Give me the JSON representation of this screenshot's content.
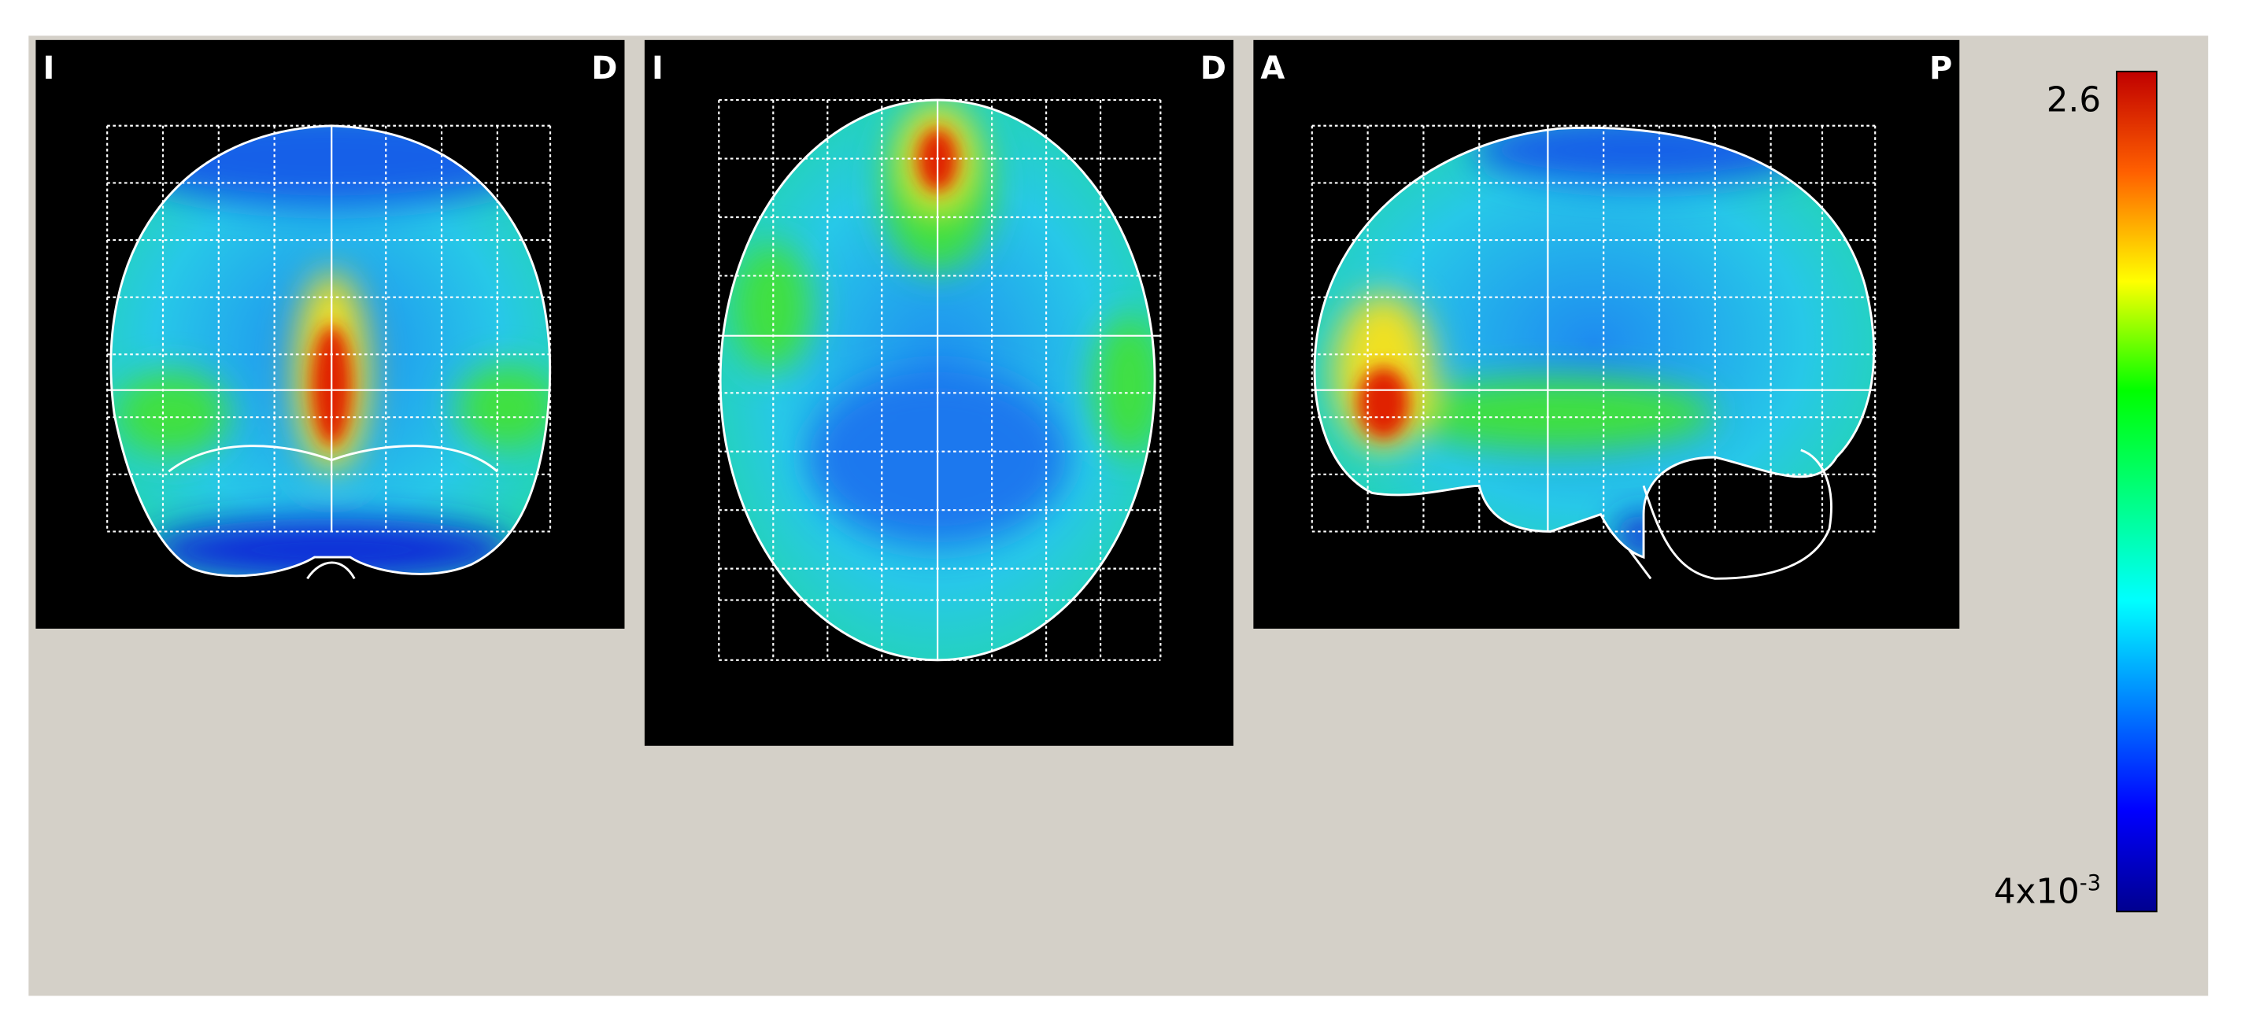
{
  "views": [
    {
      "left_label": "I",
      "right_label": "D"
    },
    {
      "left_label": "I",
      "right_label": "D"
    },
    {
      "left_label": "A",
      "right_label": "P"
    }
  ],
  "colorbar": {
    "max_label": "2.6",
    "min_label": {
      "base": "4x10",
      "exponent": "-3"
    }
  }
}
